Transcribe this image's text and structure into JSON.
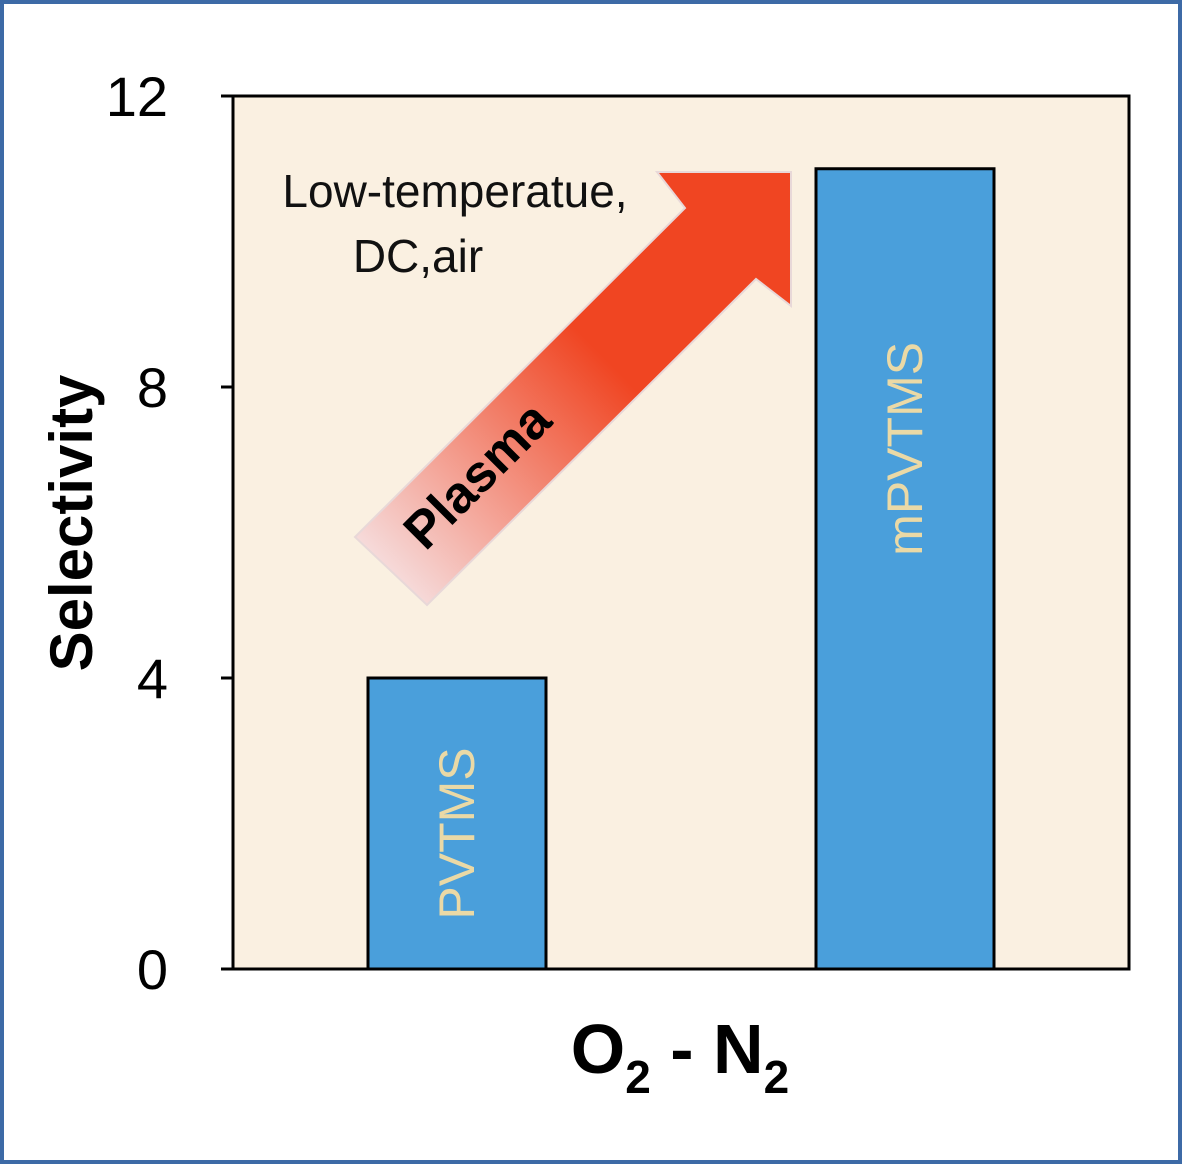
{
  "chart_data": {
    "type": "bar",
    "categories": [
      "PVTMS",
      "mPVTMS"
    ],
    "values": [
      4.0,
      11.0
    ],
    "ylabel": "Selectivity",
    "xlabel_main": "O",
    "xlabel_sub1": "2",
    "xlabel_mid": " - N",
    "xlabel_sub2": "2",
    "ylim": [
      0,
      12
    ],
    "yticks": [
      "0",
      "4",
      "8",
      "12"
    ],
    "grid": false,
    "annotation_line1": "Low-temperatue,",
    "annotation_line2": "DC,air",
    "arrow_label": "Plasma",
    "colors": {
      "bar": "#4a9fdb",
      "bar_label": "#ead9a6",
      "plot_bg": "#faf0e1",
      "arrow_start": "#f6e4e6",
      "arrow_end": "#f04522",
      "frame": "#3d6aa6"
    }
  }
}
